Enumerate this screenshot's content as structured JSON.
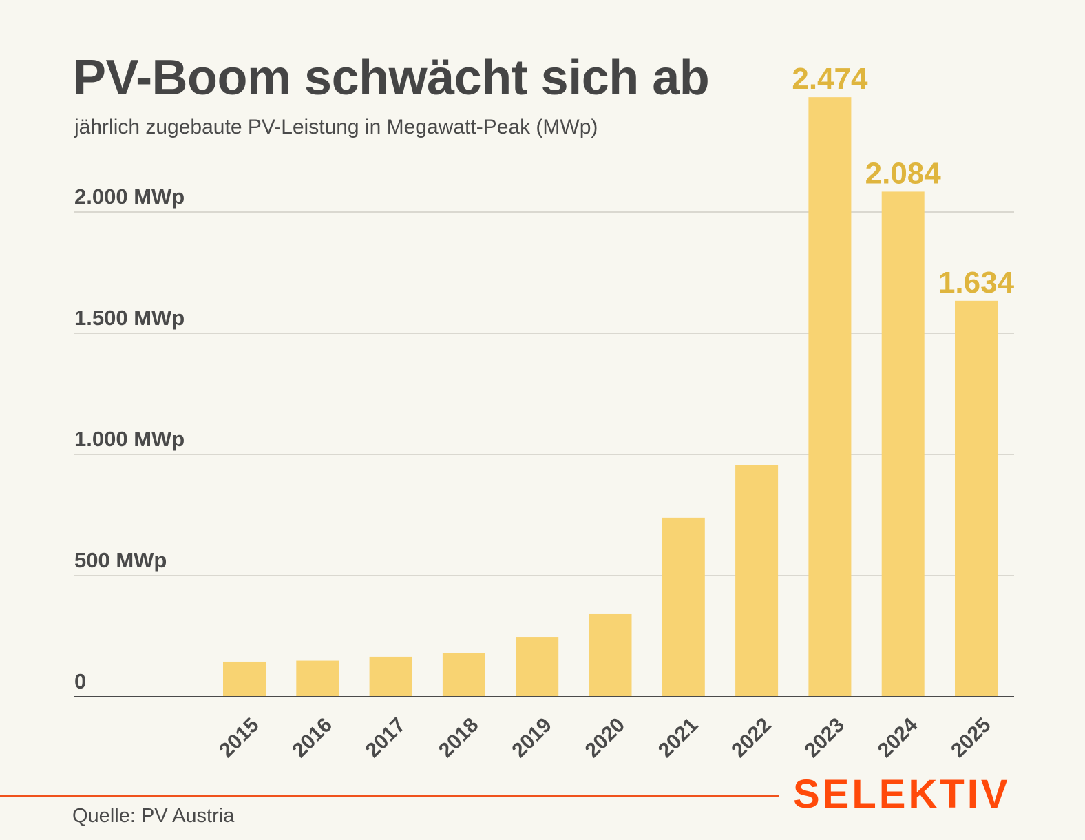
{
  "header": {
    "title": "PV-Boom schwächt sich ab",
    "subtitle": "jährlich zugebaute PV-Leistung in Megawatt-Peak (MWp)"
  },
  "footer": {
    "source": "Quelle: PV Austria",
    "brand": "SELEKTIV"
  },
  "colors": {
    "bar": "#f8d372",
    "value_label": "#dfb53e",
    "brand": "#ff4a0a",
    "gridline": "#cfcdc5",
    "axis": "#4a4a4a",
    "background": "#f8f7f0"
  },
  "chart_data": {
    "type": "bar",
    "title": "PV-Boom schwächt sich ab",
    "subtitle": "jährlich zugebaute PV-Leistung in Megawatt-Peak (MWp)",
    "xlabel": "",
    "ylabel": "MWp",
    "categories": [
      "2015",
      "2016",
      "2017",
      "2018",
      "2019",
      "2020",
      "2021",
      "2022",
      "2023",
      "2024",
      "2025"
    ],
    "values": [
      145,
      149,
      165,
      180,
      247,
      341,
      739,
      955,
      2474,
      2084,
      1634
    ],
    "data_labels": [
      null,
      null,
      null,
      null,
      null,
      null,
      null,
      null,
      "2.474",
      "2.084",
      "1.634"
    ],
    "yticks": [
      0,
      500,
      1000,
      1500,
      2000
    ],
    "ytick_labels": [
      "0",
      "500 MWp",
      "1.000 MWp",
      "1.500 MWp",
      "2.000 MWp"
    ],
    "ylim": [
      0,
      2600
    ],
    "grid": true,
    "legend": "none",
    "source": "Quelle: PV Austria"
  }
}
